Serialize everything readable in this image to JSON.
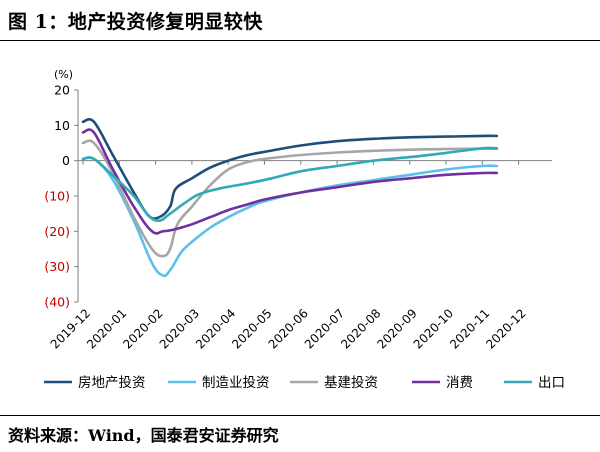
{
  "figure": {
    "title": "图 1：地产投资修复明显较快",
    "source": "资料来源：Wind，国泰君安证券研究"
  },
  "chart_data": {
    "type": "line",
    "unit_label": "(%)",
    "ylim": [
      -40,
      20
    ],
    "yticks": [
      20,
      10,
      0,
      -10,
      -20,
      -30,
      -40
    ],
    "ytick_labels": [
      "20",
      "10",
      "0",
      "(10)",
      "(20)",
      "(30)",
      "(40)"
    ],
    "ytick_label_colors": {
      "negative": "#c00000",
      "nonnegative": "#000000"
    },
    "categories": [
      "2019-12",
      "2020-01",
      "2020-02",
      "2020-03",
      "2020-04",
      "2020-05",
      "2020-06",
      "2020-07",
      "2020-08",
      "2020-09",
      "2020-10",
      "2020-11",
      "2020-12"
    ],
    "grid": false,
    "legend_position": "bottom",
    "series": [
      {
        "name": "房地产投资",
        "color": "#1f4e79",
        "points": [
          [
            0,
            11
          ],
          [
            0.3,
            11
          ],
          [
            0.8,
            2
          ],
          [
            1.4,
            -9
          ],
          [
            1.8,
            -15.5
          ],
          [
            2.1,
            -16
          ],
          [
            2.4,
            -13
          ],
          [
            2.55,
            -8
          ],
          [
            3,
            -5
          ],
          [
            3.5,
            -2
          ],
          [
            4,
            0
          ],
          [
            4.5,
            1.5
          ],
          [
            5,
            2.5
          ],
          [
            6,
            4.3
          ],
          [
            7,
            5.5
          ],
          [
            8,
            6.2
          ],
          [
            9,
            6.6
          ],
          [
            10,
            6.8
          ],
          [
            11,
            7.0
          ],
          [
            11.4,
            7.0
          ]
        ]
      },
      {
        "name": "制造业投资",
        "color": "#5bc0eb",
        "points": [
          [
            0,
            0.5
          ],
          [
            0.3,
            0.5
          ],
          [
            0.8,
            -5
          ],
          [
            1.4,
            -17
          ],
          [
            1.9,
            -29
          ],
          [
            2.2,
            -32.5
          ],
          [
            2.4,
            -31
          ],
          [
            2.7,
            -26
          ],
          [
            3,
            -23
          ],
          [
            3.5,
            -19
          ],
          [
            4,
            -16
          ],
          [
            4.5,
            -13.5
          ],
          [
            5,
            -11.5
          ],
          [
            6,
            -9
          ],
          [
            7,
            -7
          ],
          [
            8,
            -5.5
          ],
          [
            9,
            -4
          ],
          [
            10,
            -2.5
          ],
          [
            11,
            -1.5
          ],
          [
            11.4,
            -1.5
          ]
        ]
      },
      {
        "name": "基建投资",
        "color": "#a6a6a6",
        "points": [
          [
            0,
            5
          ],
          [
            0.3,
            5
          ],
          [
            0.8,
            -3
          ],
          [
            1.4,
            -16
          ],
          [
            1.9,
            -25
          ],
          [
            2.2,
            -27
          ],
          [
            2.4,
            -25
          ],
          [
            2.6,
            -18
          ],
          [
            3,
            -13
          ],
          [
            3.5,
            -7
          ],
          [
            4,
            -2.5
          ],
          [
            4.5,
            -0.5
          ],
          [
            5,
            0.5
          ],
          [
            6,
            1.6
          ],
          [
            7,
            2.3
          ],
          [
            8,
            2.8
          ],
          [
            9,
            3.1
          ],
          [
            10,
            3.3
          ],
          [
            11,
            3.4
          ],
          [
            11.4,
            3.4
          ]
        ]
      },
      {
        "name": "消费",
        "color": "#7030a0",
        "points": [
          [
            0,
            8
          ],
          [
            0.3,
            8
          ],
          [
            0.8,
            -2
          ],
          [
            1.4,
            -13
          ],
          [
            1.9,
            -20
          ],
          [
            2.2,
            -20
          ],
          [
            2.5,
            -19.5
          ],
          [
            3,
            -18
          ],
          [
            3.5,
            -16
          ],
          [
            4,
            -14
          ],
          [
            4.5,
            -12.5
          ],
          [
            5,
            -11
          ],
          [
            6,
            -9
          ],
          [
            7,
            -7.5
          ],
          [
            8,
            -6
          ],
          [
            9,
            -5
          ],
          [
            10,
            -4
          ],
          [
            11,
            -3.5
          ],
          [
            11.4,
            -3.5
          ]
        ]
      },
      {
        "name": "出口",
        "color": "#31a9b8",
        "points": [
          [
            0,
            0.5
          ],
          [
            0.3,
            0.5
          ],
          [
            0.8,
            -4
          ],
          [
            1.4,
            -10
          ],
          [
            1.8,
            -15.5
          ],
          [
            2.1,
            -17
          ],
          [
            2.4,
            -15
          ],
          [
            2.8,
            -12
          ],
          [
            3.2,
            -9.5
          ],
          [
            3.8,
            -7.8
          ],
          [
            4.5,
            -6.5
          ],
          [
            5.2,
            -5
          ],
          [
            6,
            -3
          ],
          [
            7,
            -1.5
          ],
          [
            8,
            0
          ],
          [
            9,
            1
          ],
          [
            10,
            2.2
          ],
          [
            11,
            3.5
          ],
          [
            11.4,
            3.5
          ]
        ]
      }
    ]
  }
}
